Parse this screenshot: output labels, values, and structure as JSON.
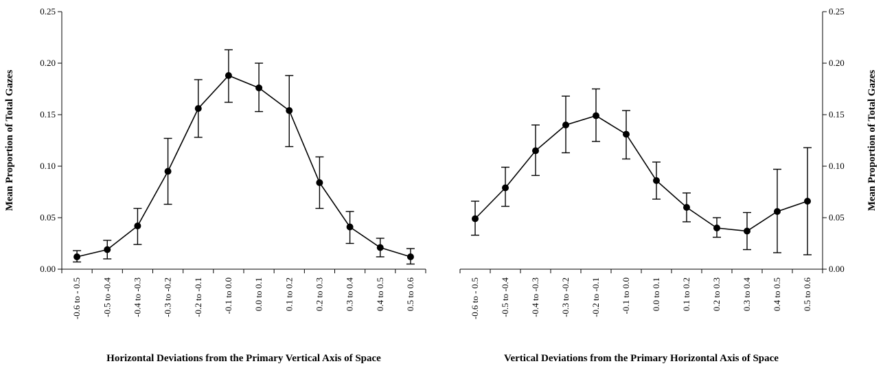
{
  "chart_data": [
    {
      "type": "line",
      "title": "",
      "xlabel": "Horizontal Deviations from the Primary Vertical Axis of Space",
      "ylabel": "Mean Proportion of Total Gazes",
      "ylim": [
        0,
        0.25
      ],
      "yticks": [
        "0.00",
        "0.05",
        "0.10",
        "0.15",
        "0.20",
        "0.25"
      ],
      "y_axis_side": "left",
      "grid": false,
      "legend": "none",
      "categories": [
        "-0.6 to - 0.5",
        "-0.5 to -0.4",
        "-0.4 to -0.3",
        "-0.3 to -0.2",
        "-0.2 to -0.1",
        "-0.1 to 0.0",
        "0.0 to 0.1",
        "0.1 to 0.2",
        "0.2 to 0.3",
        "0.3 to 0.4",
        "0.4 to 0.5",
        "0.5 to 0.6"
      ],
      "series": [
        {
          "values": [
            0.012,
            0.019,
            0.042,
            0.095,
            0.156,
            0.188,
            0.176,
            0.154,
            0.084,
            0.041,
            0.021,
            0.012
          ],
          "error_low": [
            0.007,
            0.01,
            0.024,
            0.063,
            0.128,
            0.162,
            0.153,
            0.119,
            0.059,
            0.025,
            0.012,
            0.005
          ],
          "error_high": [
            0.018,
            0.028,
            0.059,
            0.127,
            0.184,
            0.213,
            0.2,
            0.188,
            0.109,
            0.056,
            0.03,
            0.02
          ]
        }
      ]
    },
    {
      "type": "line",
      "title": "",
      "xlabel": "Vertical Deviations from the Primary Horizontal Axis of Space",
      "ylabel": "Mean Proportion of Total Gazes",
      "ylim": [
        0,
        0.25
      ],
      "yticks": [
        "0.00",
        "0.05",
        "0.10",
        "0.15",
        "0.20",
        "0.25"
      ],
      "y_axis_side": "right",
      "grid": false,
      "legend": "none",
      "categories": [
        "-0.6 to - 0.5",
        "-0.5 to -0.4",
        "-0.4 to -0.3",
        "-0.3 to -0.2",
        "-0.2 to -0.1",
        "-0.1 to 0.0",
        "0.0 to 0.1",
        "0.1 to 0.2",
        "0.2 to 0.3",
        "0.3 to 0.4",
        "0.4 to 0.5",
        "0.5 to 0.6"
      ],
      "series": [
        {
          "values": [
            0.049,
            0.079,
            0.115,
            0.14,
            0.149,
            0.131,
            0.086,
            0.06,
            0.04,
            0.037,
            0.056,
            0.066
          ],
          "error_low": [
            0.033,
            0.061,
            0.091,
            0.113,
            0.124,
            0.107,
            0.068,
            0.046,
            0.031,
            0.019,
            0.016,
            0.014
          ],
          "error_high": [
            0.066,
            0.099,
            0.14,
            0.168,
            0.175,
            0.154,
            0.104,
            0.074,
            0.05,
            0.055,
            0.097,
            0.118
          ]
        }
      ]
    }
  ],
  "style": {
    "line_color": "#000000",
    "marker_color": "#000000"
  }
}
